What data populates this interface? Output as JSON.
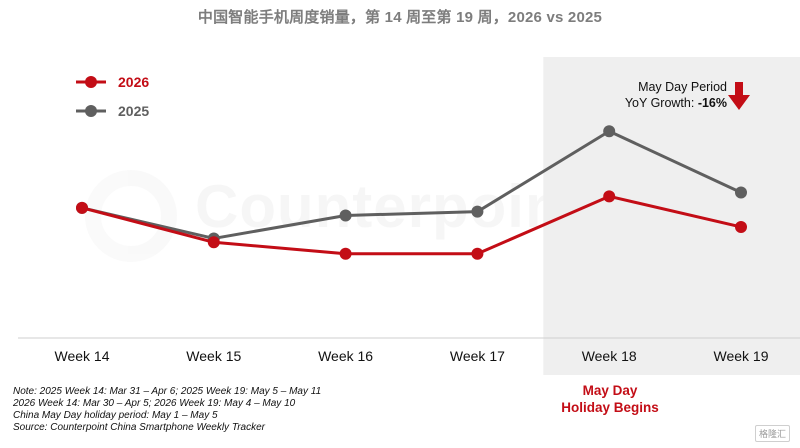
{
  "chart_data": {
    "type": "line",
    "title": "中国智能手机周度销量，第 14 周至第 19 周，2026 vs 2025",
    "categories": [
      "Week 14",
      "Week 15",
      "Week 16",
      "Week 17",
      "Week 18",
      "Week 19"
    ],
    "series": [
      {
        "name": "2026",
        "color": "#c30d16",
        "values": [
          0.64,
          0.55,
          0.52,
          0.52,
          0.67,
          0.59
        ]
      },
      {
        "name": "2025",
        "color": "#5f5f5f",
        "values": [
          0.64,
          0.56,
          0.62,
          0.63,
          0.84,
          0.68
        ]
      }
    ],
    "xlabel": "",
    "ylabel": "",
    "ylim": [
      0.3,
      1.0
    ],
    "grid": false,
    "legend": "top-left",
    "highlight": {
      "range": [
        "Week 18",
        "Week 19"
      ],
      "fill": "#efefef"
    }
  },
  "watermark": {
    "brand": "Counterpoint"
  },
  "annotation": {
    "line1": "May Day Period",
    "growth_prefix": "YoY Growth: ",
    "growth_value": "-16%"
  },
  "holiday": {
    "line1": "May Day",
    "line2": "Holiday Begins"
  },
  "notes": {
    "line1": "Note: 2025 Week 14: Mar 31 – Apr 6; 2025 Week 19: May 5 – May 11",
    "line2": "2026 Week 14: Mar 30 – Apr 5; 2026 Week 19: May 4 – May 10",
    "line3": "China May Day holiday period: May 1 – May 5",
    "line4": "Source: Counterpoint China Smartphone Weekly Tracker"
  },
  "corner_mark": "格隆汇",
  "colors": {
    "accent_red": "#c30d16",
    "series_gray": "#5f5f5f",
    "highlight_gray": "#efefef",
    "axis_gray": "#cfcfcf"
  }
}
